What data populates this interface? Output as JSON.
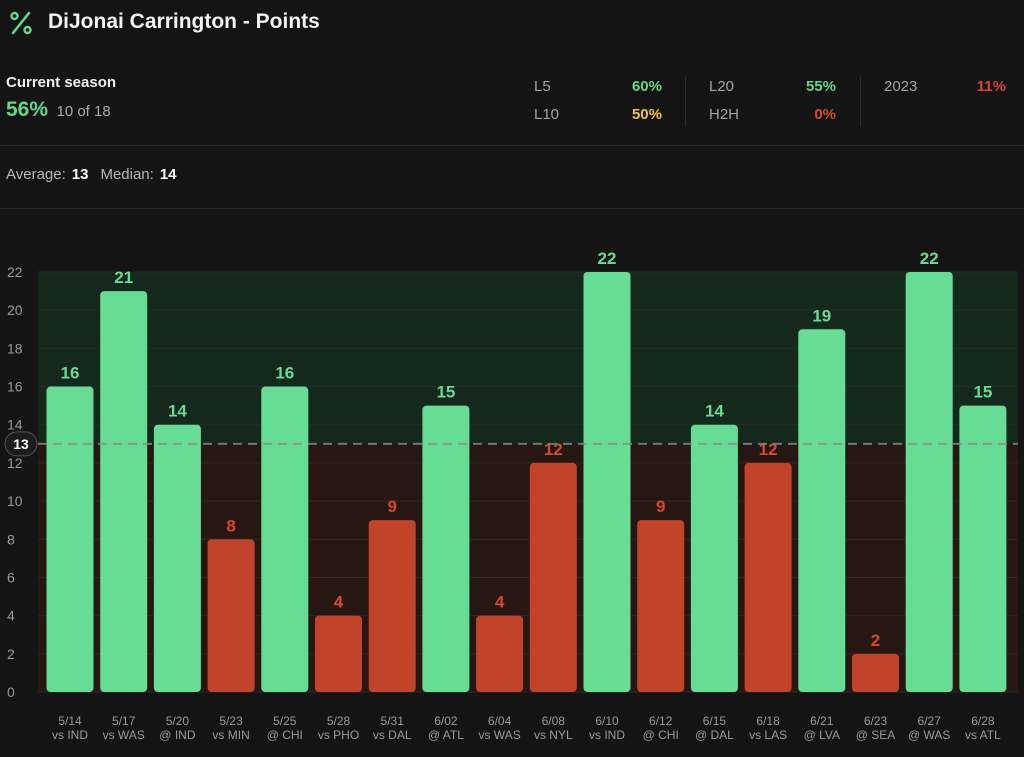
{
  "header": {
    "title": "DiJonai Carrington - Points",
    "logo_icon": "percent-icon"
  },
  "season": {
    "label": "Current season",
    "percent": "56%",
    "fraction": "10 of 18"
  },
  "stats": [
    {
      "label": "L5",
      "value": "60%",
      "color": "#5fd98a"
    },
    {
      "label": "L10",
      "value": "50%",
      "color": "#f2c040"
    },
    {
      "label": "L20",
      "value": "55%",
      "color": "#5fd98a"
    },
    {
      "label": "H2H",
      "value": "0%",
      "color": "#d9482b"
    },
    {
      "label": "2023",
      "value": "11%",
      "color": "#d9482b"
    }
  ],
  "summary": {
    "average_label": "Average:",
    "average_value": "13",
    "median_label": "Median:",
    "median_value": "14"
  },
  "colors": {
    "over": "#66dc94",
    "under": "#c1432a",
    "over_text": "#66dc94",
    "under_text": "#d9482b"
  },
  "chart_data": {
    "type": "bar",
    "title": "",
    "xlabel": "",
    "ylabel": "",
    "ylim": [
      0,
      22
    ],
    "yticks": [
      0,
      2,
      4,
      6,
      8,
      10,
      12,
      14,
      16,
      18,
      20,
      22
    ],
    "line_value": 13,
    "categories": [
      {
        "date": "5/14",
        "opp": "vs IND"
      },
      {
        "date": "5/17",
        "opp": "vs WAS"
      },
      {
        "date": "5/20",
        "opp": "@ IND"
      },
      {
        "date": "5/23",
        "opp": "vs MIN"
      },
      {
        "date": "5/25",
        "opp": "@ CHI"
      },
      {
        "date": "5/28",
        "opp": "vs PHO"
      },
      {
        "date": "5/31",
        "opp": "vs DAL"
      },
      {
        "date": "6/02",
        "opp": "@ ATL"
      },
      {
        "date": "6/04",
        "opp": "vs WAS"
      },
      {
        "date": "6/08",
        "opp": "vs NYL"
      },
      {
        "date": "6/10",
        "opp": "vs IND"
      },
      {
        "date": "6/12",
        "opp": "@ CHI"
      },
      {
        "date": "6/15",
        "opp": "@ DAL"
      },
      {
        "date": "6/18",
        "opp": "vs LAS"
      },
      {
        "date": "6/21",
        "opp": "@ LVA"
      },
      {
        "date": "6/23",
        "opp": "@ SEA"
      },
      {
        "date": "6/27",
        "opp": "@ WAS"
      },
      {
        "date": "6/28",
        "opp": "vs ATL"
      }
    ],
    "values": [
      16,
      21,
      14,
      8,
      16,
      4,
      9,
      15,
      4,
      12,
      22,
      9,
      14,
      12,
      19,
      2,
      22,
      15
    ]
  }
}
